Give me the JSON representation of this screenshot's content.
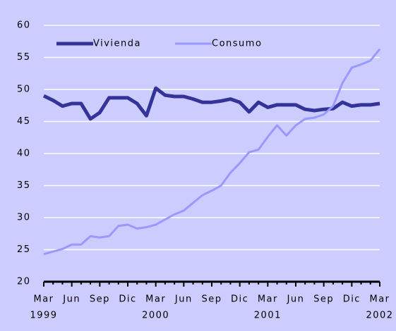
{
  "chart_data": {
    "type": "line",
    "categories": [
      "Mar",
      null,
      null,
      "Jun",
      null,
      null,
      "Sep",
      null,
      null,
      "Dic",
      null,
      null,
      "Mar",
      null,
      null,
      "Jun",
      null,
      null,
      "Sep",
      null,
      null,
      "Dic",
      null,
      null,
      "Mar",
      null,
      null,
      "Jun",
      null,
      null,
      "Sep",
      null,
      null,
      "Dic",
      null,
      null,
      "Mar"
    ],
    "x_years": [
      "1999",
      null,
      null,
      null,
      null,
      null,
      null,
      null,
      null,
      null,
      null,
      null,
      "2000",
      null,
      null,
      null,
      null,
      null,
      null,
      null,
      null,
      null,
      null,
      null,
      "2001",
      null,
      null,
      null,
      null,
      null,
      null,
      null,
      null,
      null,
      null,
      null,
      "2002"
    ],
    "series": [
      {
        "name": "Vivienda",
        "color": "#333399",
        "values": [
          49.0,
          48.3,
          47.4,
          47.8,
          47.8,
          45.4,
          46.4,
          48.7,
          48.7,
          48.7,
          47.8,
          45.9,
          50.2,
          49.1,
          48.9,
          48.9,
          48.5,
          48.0,
          48.0,
          48.2,
          48.5,
          48.0,
          46.5,
          48.0,
          47.2,
          47.6,
          47.6,
          47.6,
          46.9,
          46.7,
          46.9,
          47.0,
          48.0,
          47.4,
          47.6,
          47.6,
          47.8
        ]
      },
      {
        "name": "Consumo",
        "color": "#9999ff",
        "values": [
          24.3,
          24.7,
          25.1,
          25.8,
          25.8,
          27.1,
          26.9,
          27.1,
          28.7,
          28.9,
          28.3,
          28.5,
          28.9,
          29.7,
          30.5,
          31.1,
          32.3,
          33.5,
          34.2,
          35.0,
          37.0,
          38.5,
          40.2,
          40.6,
          42.6,
          44.4,
          42.8,
          44.4,
          45.4,
          45.6,
          46.1,
          47.4,
          51.0,
          53.4,
          53.9,
          54.5,
          56.3
        ]
      }
    ],
    "ylim": [
      20,
      60
    ],
    "yticks": [
      20,
      25,
      30,
      35,
      40,
      45,
      50,
      55,
      60
    ],
    "grid": true
  }
}
